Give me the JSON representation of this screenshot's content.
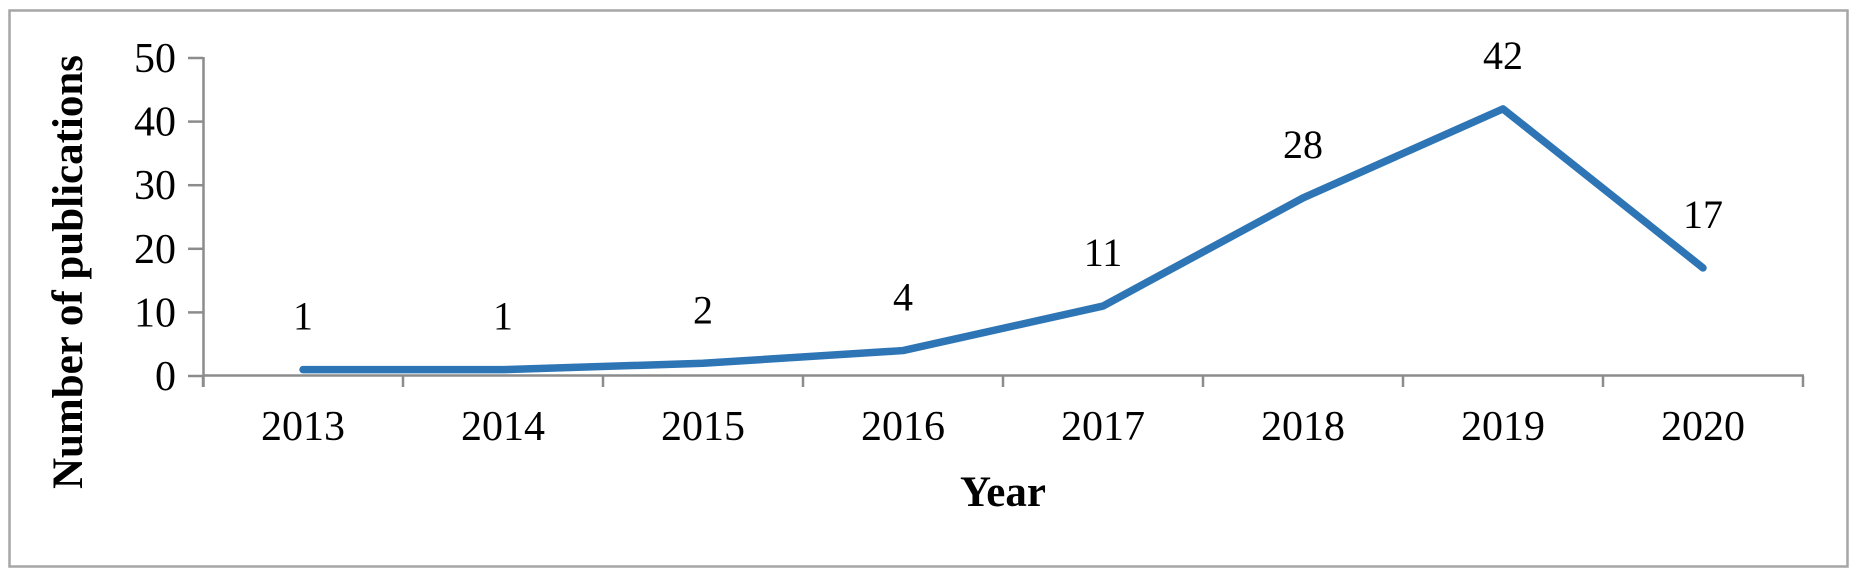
{
  "chart_data": {
    "type": "line",
    "categories": [
      "2013",
      "2014",
      "2015",
      "2016",
      "2017",
      "2018",
      "2019",
      "2020"
    ],
    "values": [
      1,
      1,
      2,
      4,
      11,
      28,
      42,
      17
    ],
    "data_labels": [
      "1",
      "1",
      "2",
      "4",
      "11",
      "28",
      "42",
      "17"
    ],
    "title": "",
    "xlabel": "Year",
    "ylabel": "Number of publications",
    "ylim": [
      0,
      50
    ],
    "yticks": [
      0,
      10,
      20,
      30,
      40,
      50
    ],
    "grid": false,
    "legend": "none",
    "line_color": "#2E75B6",
    "axis_color": "#8C8C8C",
    "frame_color": "#A6A6A6",
    "text_color": "#000000",
    "background": "#FFFFFF"
  }
}
